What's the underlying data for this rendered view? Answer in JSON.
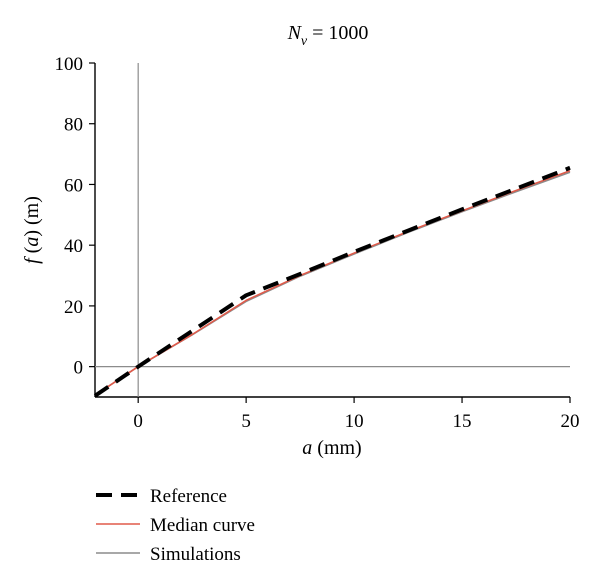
{
  "chart_data": {
    "type": "line",
    "title": {
      "var": "N",
      "sub": "v",
      "rest": " = 1000"
    },
    "xlabel": {
      "var": "a",
      "rest": " (mm)"
    },
    "ylabel": {
      "func": "f",
      "open": " (",
      "var": "a",
      "rest": ") (m)"
    },
    "xlim": [
      -2,
      20
    ],
    "ylim": [
      -10,
      100
    ],
    "xticks": [
      0,
      5,
      10,
      15,
      20
    ],
    "yticks": [
      0,
      20,
      40,
      60,
      80,
      100
    ],
    "grid": false,
    "zero_lines": true,
    "legend_position": "below",
    "series": [
      {
        "name": "Simulations",
        "color": "#8c8c8c",
        "style": "solid",
        "x": [
          -2,
          0,
          2.5,
          5,
          7.5,
          10,
          12.5,
          15,
          17.5,
          20
        ],
        "y": [
          -9.4,
          0,
          10.5,
          21.5,
          29.8,
          37.1,
          44.2,
          51.0,
          57.6,
          64.0
        ]
      },
      {
        "name": "Median curve",
        "color": "#e05a4a",
        "style": "solid",
        "x": [
          -2,
          0,
          2.5,
          5,
          7.5,
          10,
          12.5,
          15,
          17.5,
          20
        ],
        "y": [
          -9.4,
          0,
          10.6,
          21.8,
          30.0,
          37.4,
          44.5,
          51.3,
          58.0,
          64.5
        ]
      },
      {
        "name": "Reference",
        "color": "#000000",
        "style": "dashed",
        "x": [
          -2,
          0,
          5,
          7.5,
          10,
          12.5,
          15,
          17.5,
          20
        ],
        "y": [
          -9.6,
          0,
          23.5,
          30.5,
          37.8,
          44.8,
          51.8,
          58.6,
          65.5
        ]
      }
    ],
    "legend_order": [
      "Reference",
      "Median curve",
      "Simulations"
    ]
  }
}
